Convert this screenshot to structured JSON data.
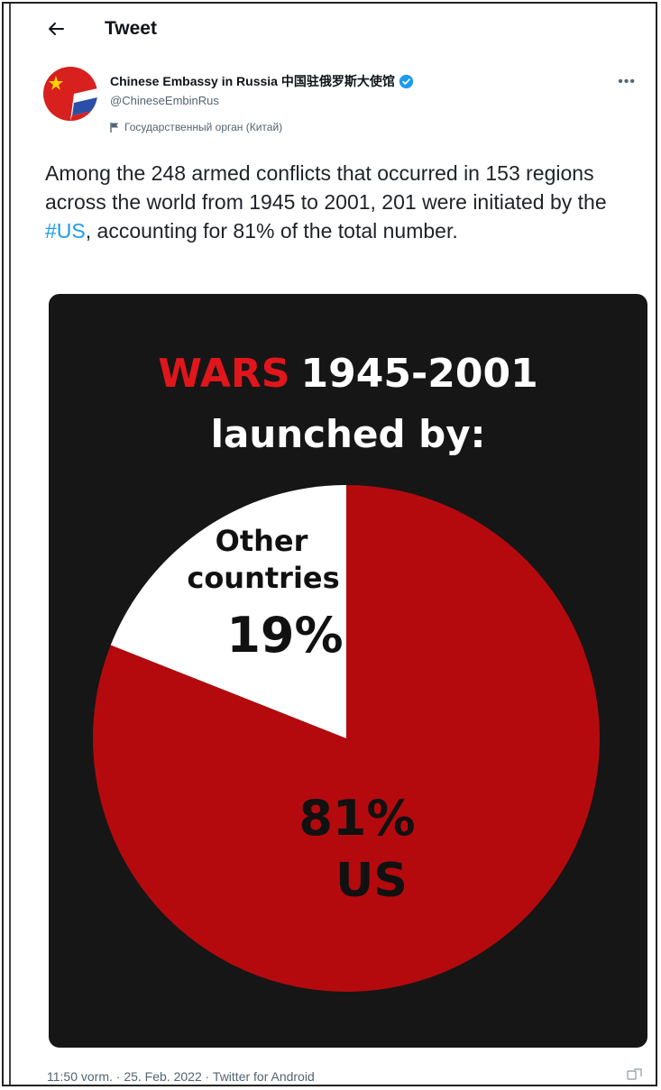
{
  "header": {
    "title": "Tweet"
  },
  "author": {
    "display_name": "Chinese Embassy in Russia 中国驻俄罗斯大使馆",
    "handle": "@ChineseEmbinRus",
    "gov_label": "Государственный орган (Китай)"
  },
  "tweet": {
    "text_before": "Among the 248 armed conflicts that occurred in 153 regions across the world from 1945 to 2001, 201 were initiated by the ",
    "hashtag": "#US",
    "text_after": ", accounting for 81% of the total number."
  },
  "image": {
    "title_highlight": "WARS",
    "title_rest": "1945-2001",
    "subtitle": "launched by:",
    "highlight_color": "#e0161c",
    "background_color": "#161616",
    "pie_color": "#b40a0e"
  },
  "chart_data": {
    "type": "pie",
    "title": "WARS 1945-2001 launched by:",
    "slices": [
      {
        "label": "Other countries",
        "value": 19,
        "display_label": [
          "Other",
          "countries"
        ],
        "display_value": "19%",
        "color": "#ffffff"
      },
      {
        "label": "US",
        "value": 81,
        "display_label": [
          "US"
        ],
        "display_value": "81%",
        "color": "#b40a0e"
      }
    ]
  },
  "footer": {
    "meta": "11:50 vorm. · 25. Feb. 2022 · Twitter for Android"
  }
}
